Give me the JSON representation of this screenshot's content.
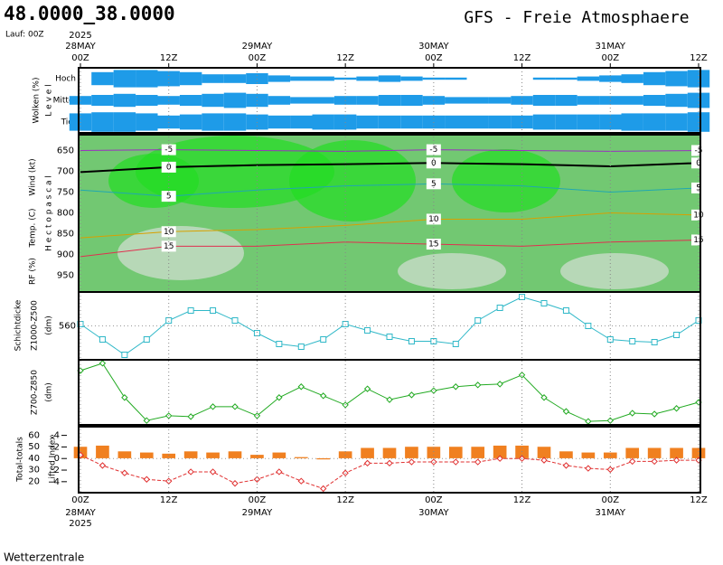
{
  "header": {
    "title": "48.0000_38.0000",
    "run": "Lauf: 00Z",
    "model": "GFS - Freie Atmosphaere"
  },
  "time_axis": {
    "xlim": [
      0,
      84
    ],
    "xticks": [
      {
        "value": 0,
        "label": "00Z"
      },
      {
        "value": 12,
        "label": "12Z"
      },
      {
        "value": 24,
        "label": "00Z"
      },
      {
        "value": 36,
        "label": "12Z"
      },
      {
        "value": 48,
        "label": "00Z"
      },
      {
        "value": 60,
        "label": "12Z"
      },
      {
        "value": 72,
        "label": "00Z"
      },
      {
        "value": 84,
        "label": "12Z"
      }
    ],
    "dates": [
      {
        "value": 0,
        "label": "28MAY"
      },
      {
        "value": 24,
        "label": "29MAY"
      },
      {
        "value": 48,
        "label": "30MAY"
      },
      {
        "value": 72,
        "label": "31MAY"
      }
    ],
    "year": "2025"
  },
  "chart_data": [
    {
      "type": "cloud",
      "ylabel": "Wolken (%)",
      "ylabel2": "L e v e l",
      "x": [
        0,
        3,
        6,
        9,
        12,
        15,
        18,
        21,
        24,
        27,
        30,
        33,
        36,
        39,
        42,
        45,
        48,
        51,
        54,
        57,
        60,
        63,
        66,
        69,
        72,
        75,
        78,
        81,
        84
      ],
      "series": [
        {
          "name": "Hoch",
          "color": "#1e9be8",
          "values": [
            0,
            60,
            80,
            80,
            70,
            60,
            40,
            40,
            50,
            30,
            20,
            20,
            10,
            20,
            30,
            20,
            10,
            10,
            0,
            0,
            0,
            10,
            10,
            20,
            30,
            40,
            60,
            70,
            80
          ]
        },
        {
          "name": "Mittel",
          "color": "#1e9be8",
          "values": [
            40,
            50,
            60,
            50,
            40,
            50,
            60,
            70,
            60,
            40,
            30,
            30,
            40,
            40,
            50,
            50,
            40,
            30,
            30,
            30,
            40,
            50,
            50,
            40,
            40,
            40,
            50,
            60,
            70
          ]
        },
        {
          "name": "Tief",
          "color": "#1e9be8",
          "values": [
            80,
            90,
            90,
            80,
            60,
            70,
            80,
            80,
            70,
            60,
            60,
            70,
            70,
            60,
            60,
            60,
            60,
            60,
            60,
            60,
            60,
            70,
            70,
            70,
            70,
            80,
            80,
            80,
            90
          ]
        }
      ]
    },
    {
      "type": "contour",
      "ylabel": "Wind (kt)",
      "ylabel2": "Temp. (C)",
      "ylabel3": "RF (%)",
      "ylabel4": "H e c t o p a s c a l",
      "ylim": [
        990,
        612
      ],
      "yticks": [
        650,
        700,
        750,
        800,
        850,
        900,
        950
      ],
      "x": [
        0,
        12,
        24,
        36,
        48,
        60,
        72,
        84
      ],
      "series": [
        {
          "name": "-5",
          "color": "#9b30c0",
          "values": [
            650,
            648,
            650,
            652,
            648,
            650,
            652,
            650
          ]
        },
        {
          "name": "0",
          "color": "#000000",
          "values": [
            702,
            690,
            685,
            683,
            680,
            683,
            688,
            680
          ]
        },
        {
          "name": "5",
          "color": "#20a8b0",
          "values": [
            745,
            760,
            745,
            735,
            730,
            735,
            750,
            740
          ]
        },
        {
          "name": "10",
          "color": "#d8a000",
          "values": [
            860,
            845,
            840,
            830,
            815,
            815,
            800,
            805
          ]
        },
        {
          "name": "15",
          "color": "#e03050",
          "values": [
            905,
            880,
            880,
            870,
            875,
            880,
            870,
            865
          ]
        }
      ]
    },
    {
      "type": "line",
      "ylabel": "Schichtdicke",
      "ylabel2": "Z1000-Z500",
      "ylabel3": "(dm)",
      "ylim": [
        545,
        575
      ],
      "yticks": [
        560
      ],
      "marker": "square",
      "x": [
        0,
        3,
        6,
        9,
        12,
        15,
        18,
        21,
        24,
        27,
        30,
        33,
        36,
        39,
        42,
        45,
        48,
        51,
        54,
        57,
        60,
        63,
        66,
        69,
        72,
        75,
        78,
        81,
        84
      ],
      "series": [
        {
          "name": "Z1000-Z500",
          "color": "#30b8c8",
          "values": [
            560.8,
            554,
            547.2,
            554,
            562.4,
            566.8,
            566.8,
            562.4,
            556.8,
            552,
            550.8,
            554,
            560.8,
            558,
            555.2,
            553.2,
            553.2,
            552,
            562.4,
            568,
            572.8,
            570,
            566.8,
            560,
            554,
            553.2,
            552.8,
            556,
            562.4
          ]
        }
      ]
    },
    {
      "type": "line",
      "ylabel": "Z700-Z850",
      "ylabel2": "(dm)",
      "ylim": [
        145,
        160
      ],
      "marker": "diamond",
      "x": [
        0,
        3,
        6,
        9,
        12,
        15,
        18,
        21,
        24,
        27,
        30,
        33,
        36,
        39,
        42,
        45,
        48,
        51,
        54,
        57,
        60,
        63,
        66,
        69,
        72,
        75,
        78,
        81,
        84
      ],
      "series": [
        {
          "name": "Z700-Z850",
          "color": "#22aa22",
          "values": [
            157.5,
            159.2,
            151.3,
            146.0,
            147.1,
            146.9,
            149.2,
            149.2,
            147.1,
            151.3,
            153.8,
            151.7,
            149.6,
            153.3,
            150.8,
            151.9,
            152.9,
            153.8,
            154.2,
            154.4,
            156.5,
            151.3,
            148.1,
            145.8,
            146.0,
            147.7,
            147.5,
            148.8,
            150.2
          ]
        }
      ]
    },
    {
      "type": "indices",
      "ylabel": "Total-totals",
      "ylabel2": "Lifted Index",
      "ylim": [
        10,
        67.5
      ],
      "yticks": [
        20,
        30,
        40,
        50,
        60
      ],
      "y2lim": [
        5.9,
        -5.5
      ],
      "y2ticks": [
        -4,
        -2,
        0,
        2,
        4
      ],
      "x": [
        0,
        3,
        6,
        9,
        12,
        15,
        18,
        21,
        24,
        27,
        30,
        33,
        36,
        39,
        42,
        45,
        48,
        51,
        54,
        57,
        60,
        63,
        66,
        69,
        72,
        75,
        78,
        81,
        84
      ],
      "series": [
        {
          "name": "Total-totals",
          "color": "#f08020",
          "values": [
            50,
            51,
            46,
            45,
            44,
            46,
            45,
            46,
            43,
            45,
            41,
            39,
            46,
            49,
            49,
            50,
            50,
            50,
            50,
            51,
            51,
            50,
            46,
            45,
            45,
            49,
            49,
            49,
            49
          ]
        },
        {
          "name": "Lifted Index",
          "color": "#e03030",
          "axis": "y2",
          "values": [
            -0.6,
            1.2,
            2.5,
            3.6,
            3.9,
            2.3,
            2.3,
            4.3,
            3.6,
            2.3,
            3.9,
            5.2,
            2.5,
            0.8,
            0.8,
            0.6,
            0.6,
            0.6,
            0.6,
            0,
            0,
            0.3,
            1.2,
            1.7,
            1.9,
            0.5,
            0.5,
            0.3,
            0.3
          ]
        }
      ]
    }
  ],
  "footer": "Wetterzentrale"
}
